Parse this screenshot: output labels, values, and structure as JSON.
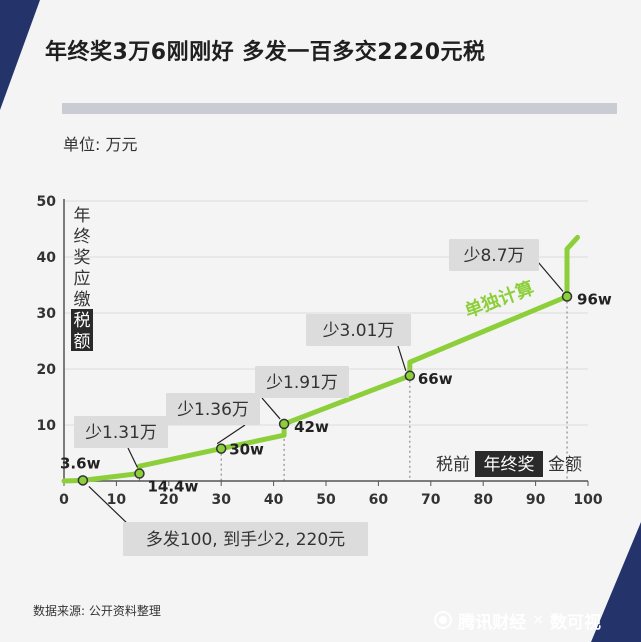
{
  "title": "年终奖3万6刚刚好 多发一百多交2220元税",
  "unit_label": "单位: 万元",
  "source": "数据来源: 公开资料整理",
  "brand": {
    "name": "腾讯财经",
    "separator": "×",
    "partner": "数可视"
  },
  "colors": {
    "line": "#8ccf3a",
    "label_bg": "#dcdcdc",
    "dark_bg": "#2a2a2a",
    "navy": "#24346b",
    "axis": "#555555"
  },
  "chart_data": {
    "type": "line",
    "xlim": [
      0,
      100
    ],
    "ylim": [
      0,
      50
    ],
    "x_ticks": [
      0,
      10,
      20,
      30,
      40,
      50,
      60,
      70,
      80,
      90,
      100
    ],
    "y_ticks": [
      10,
      20,
      30,
      40,
      50
    ],
    "ylabel_chars": [
      "年",
      "终",
      "奖",
      "应",
      "缴",
      "税",
      "额"
    ],
    "ylabel_highlight_indices": [
      5,
      6
    ],
    "xlabel": {
      "prefix": "税前",
      "highlight": "年终奖",
      "suffix": "金额"
    },
    "series_label": "单独计算",
    "points": [
      [
        0,
        0
      ],
      [
        3.6,
        0.108
      ],
      [
        14.4,
        1.332
      ],
      [
        14.4,
        2.64
      ],
      [
        30,
        5.78
      ],
      [
        42,
        8.17
      ],
      [
        42,
        10.19
      ],
      [
        66,
        18.79
      ],
      [
        66,
        21.22
      ],
      [
        96,
        32.95
      ],
      [
        96,
        41.43
      ],
      [
        98,
        43.5
      ]
    ],
    "markers": [
      {
        "x": 3.6,
        "y": 0.108,
        "label": "3.6w"
      },
      {
        "x": 14.4,
        "y": 1.332,
        "label": "14.4w"
      },
      {
        "x": 30,
        "y": 5.78,
        "label": "30w"
      },
      {
        "x": 42,
        "y": 10.19,
        "label": "42w"
      },
      {
        "x": 66,
        "y": 18.79,
        "label": "66w"
      },
      {
        "x": 96,
        "y": 32.95,
        "label": "96w"
      }
    ],
    "annotations": [
      {
        "text": "多发100, 到手少2, 220元",
        "x": 3.6,
        "y": 0.108
      },
      {
        "text": "少1.31万",
        "x": 14.4,
        "y": 1.332
      },
      {
        "text": "少1.36万",
        "x": 30,
        "y": 5.78
      },
      {
        "text": "少1.91万",
        "x": 42,
        "y": 10.19
      },
      {
        "text": "少3.01万",
        "x": 66,
        "y": 18.79
      },
      {
        "text": "少8.7万",
        "x": 96,
        "y": 32.95
      }
    ]
  }
}
